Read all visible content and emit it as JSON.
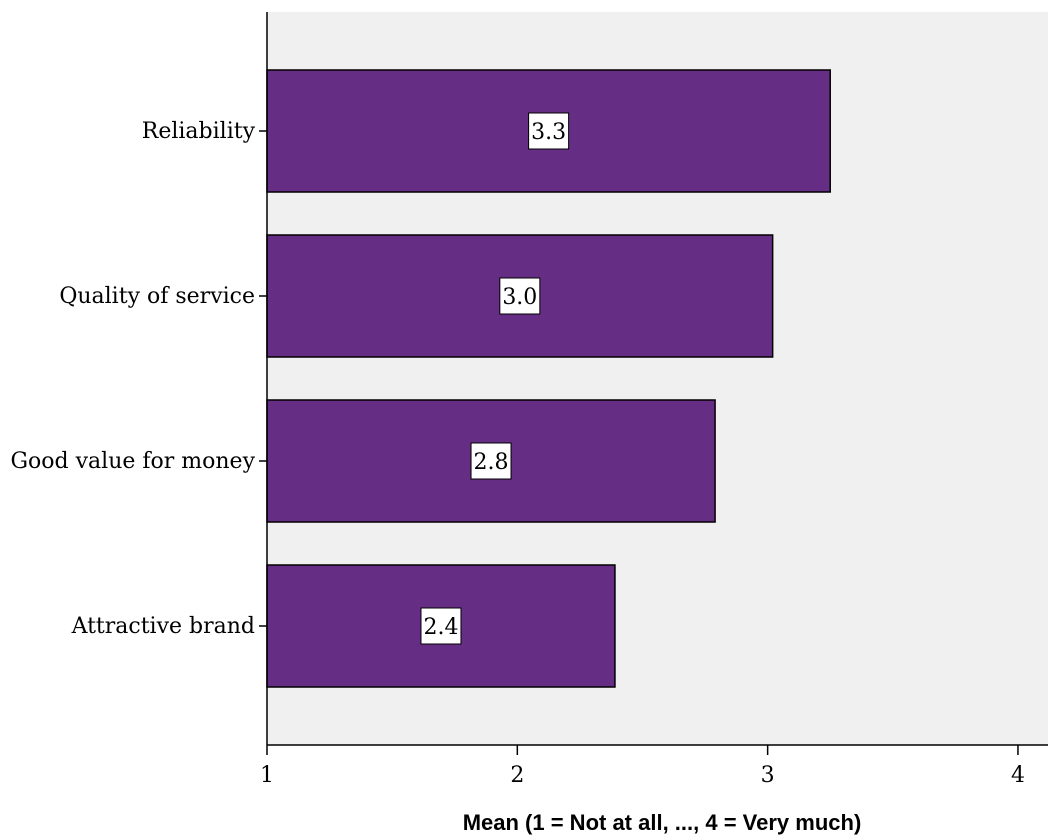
{
  "chart_data": {
    "type": "bar",
    "orientation": "horizontal",
    "categories": [
      "Reliability",
      "Quality of service",
      "Good value for money",
      "Attractive brand"
    ],
    "values": [
      3.25,
      3.02,
      2.79,
      2.39
    ],
    "data_labels": [
      "3.3",
      "3.0",
      "2.8",
      "2.4"
    ],
    "title": "",
    "xlabel": "Mean (1 = Not at all, ..., 4 = Very much)",
    "ylabel": "",
    "xlim": [
      1,
      4.12
    ],
    "xticks": [
      1,
      2,
      3,
      4
    ],
    "xtick_labels": [
      "1",
      "2",
      "3",
      "4"
    ],
    "grid": false,
    "legend": "none"
  },
  "colors": {
    "bar_fill": "#662d85",
    "bar_stroke": "#000000",
    "plot_background": "#f0f0f0",
    "label_box": "#ffffff"
  }
}
